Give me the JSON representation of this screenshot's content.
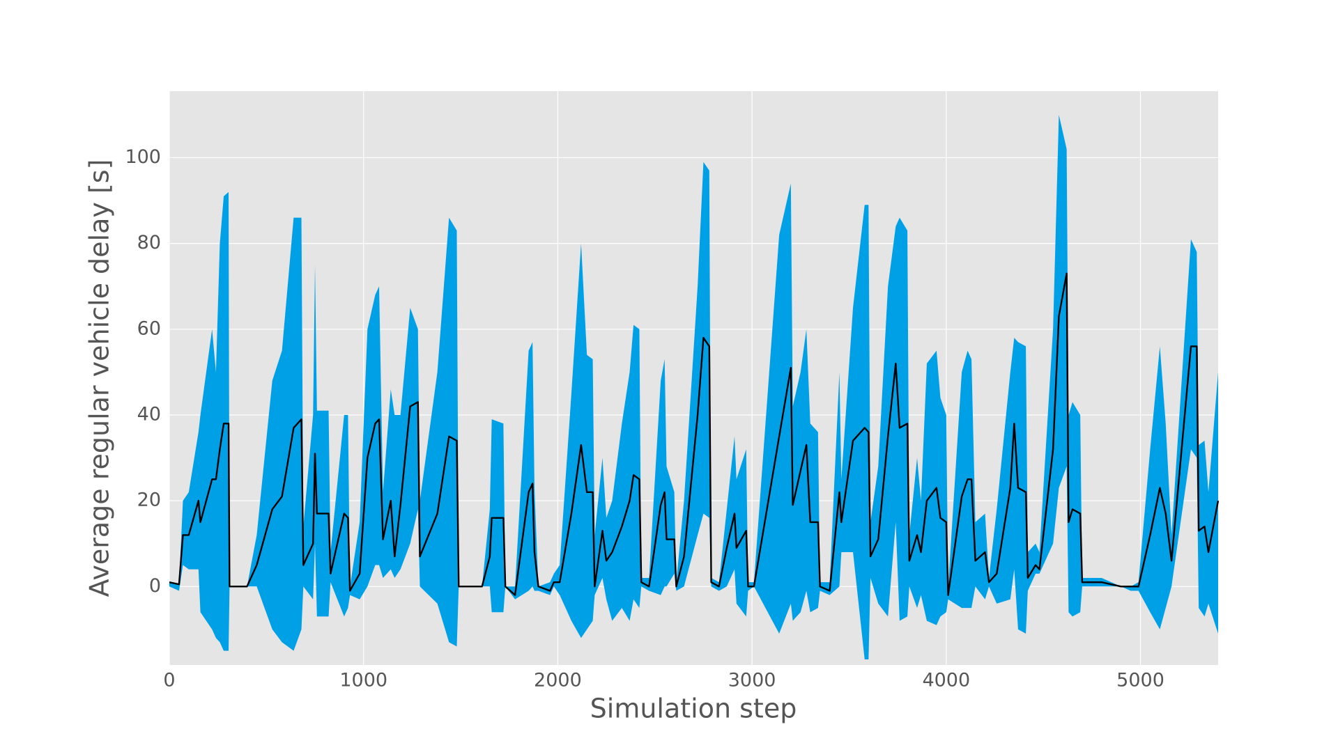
{
  "chart_data": {
    "type": "line",
    "xlabel": "Simulation step",
    "ylabel": "Average regular vehicle delay [s]",
    "x": [
      0,
      50,
      70,
      100,
      150,
      160,
      220,
      240,
      260,
      280,
      305,
      310,
      400,
      450,
      530,
      580,
      640,
      680,
      690,
      740,
      750,
      760,
      820,
      830,
      900,
      920,
      930,
      980,
      1020,
      1060,
      1080,
      1100,
      1140,
      1160,
      1190,
      1240,
      1280,
      1290,
      1380,
      1440,
      1480,
      1490,
      1610,
      1650,
      1660,
      1720,
      1730,
      1780,
      1850,
      1870,
      1880,
      1900,
      1960,
      1980,
      2010,
      2070,
      2120,
      2150,
      2180,
      2190,
      2230,
      2250,
      2280,
      2330,
      2370,
      2390,
      2420,
      2430,
      2470,
      2530,
      2550,
      2560,
      2600,
      2610,
      2650,
      2720,
      2750,
      2780,
      2790,
      2830,
      2870,
      2910,
      2920,
      2970,
      2980,
      3010,
      3140,
      3200,
      3210,
      3250,
      3280,
      3300,
      3340,
      3350,
      3400,
      3450,
      3460,
      3520,
      3580,
      3600,
      3610,
      3650,
      3700,
      3740,
      3760,
      3800,
      3810,
      3850,
      3870,
      3900,
      3950,
      3970,
      4000,
      4010,
      4080,
      4110,
      4130,
      4150,
      4200,
      4220,
      4260,
      4330,
      4350,
      4370,
      4410,
      4420,
      4460,
      4480,
      4550,
      4580,
      4620,
      4630,
      4650,
      4690,
      4700,
      4800,
      4900,
      4950,
      4990,
      5050,
      5100,
      5130,
      5160,
      5260,
      5290,
      5300,
      5330,
      5350,
      5400
    ],
    "series": [
      {
        "color": "#000000",
        "values": [
          1,
          0.5,
          12,
          12,
          20,
          15,
          25,
          25,
          32,
          38,
          38,
          0,
          0,
          5,
          18,
          21,
          37,
          39,
          5,
          10,
          31,
          17,
          17,
          3,
          17,
          16,
          -1,
          3,
          30,
          38,
          39,
          11,
          20,
          7,
          19,
          42,
          43,
          7,
          17,
          35,
          34,
          0,
          0,
          7,
          16,
          16,
          0,
          -2,
          22,
          24,
          8,
          0,
          -1,
          1,
          1,
          17,
          33,
          22,
          22,
          0,
          13,
          6,
          8,
          14,
          20,
          26,
          25,
          1,
          0,
          19,
          22,
          11,
          11,
          0,
          7,
          40,
          58,
          56,
          1,
          0,
          9,
          17,
          9,
          13,
          0,
          0,
          35,
          51,
          19,
          27,
          33,
          15,
          15,
          0,
          -1,
          22,
          15,
          34,
          37,
          36,
          7,
          11,
          35,
          52,
          37,
          38,
          6,
          12,
          8,
          20,
          23,
          16,
          15,
          -2,
          21,
          25,
          25,
          6,
          8,
          1,
          3,
          23,
          38,
          23,
          22,
          2,
          5,
          4,
          32,
          63,
          73,
          15,
          18,
          17,
          1,
          1,
          0,
          0,
          0,
          12,
          23,
          17,
          6,
          56,
          56,
          13,
          14,
          8,
          20
        ]
      }
    ],
    "band": {
      "color": "#00a0e6",
      "lower": [
        0,
        -1,
        5,
        4,
        4,
        -6,
        -10,
        -12,
        -13,
        -15,
        -15,
        0,
        0,
        0,
        -10,
        -13,
        -15,
        -10,
        0,
        -3,
        10,
        -7,
        -7,
        1,
        -7,
        -5,
        -2,
        -3,
        0,
        5,
        5,
        2,
        4,
        2,
        4,
        10,
        18,
        0,
        -4,
        -13,
        -14,
        0,
        0,
        0,
        -6,
        -6,
        0,
        -3,
        -1,
        0,
        -1,
        -1,
        -2,
        0,
        -2,
        -8,
        -12,
        -10,
        -8,
        -2,
        2,
        -3,
        -8,
        -5,
        -8,
        -3,
        -5,
        0,
        -1,
        -2,
        0,
        0,
        3,
        -1,
        0,
        12,
        17,
        16,
        0,
        -1,
        0,
        4,
        -4,
        -7,
        -1,
        0,
        -11,
        -4,
        -8,
        -6,
        -1,
        -6,
        -5,
        -1,
        -2,
        0,
        8,
        8,
        -17,
        -17,
        2,
        -4,
        -7,
        15,
        -8,
        -7,
        0,
        -5,
        -2,
        -8,
        -9,
        -7,
        -6,
        -3,
        -5,
        -5,
        -5,
        0,
        -3,
        0,
        -4,
        -3,
        4,
        -10,
        -11,
        -1,
        3,
        3,
        10,
        23,
        28,
        -6,
        -7,
        -6,
        0,
        0,
        0,
        -1,
        -1,
        -6,
        -10,
        -5,
        0,
        32,
        30,
        -5,
        -7,
        -4,
        -11
      ],
      "upper": [
        1,
        0.5,
        20,
        22,
        36,
        40,
        60,
        50,
        80,
        91,
        92,
        0,
        0,
        12,
        48,
        55,
        86,
        86,
        14,
        40,
        75,
        41,
        41,
        8,
        40,
        40,
        0,
        15,
        60,
        68,
        70,
        22,
        46,
        40,
        40,
        65,
        60,
        20,
        50,
        86,
        83,
        0,
        0,
        18,
        39,
        38,
        0,
        0,
        55,
        57,
        23,
        0,
        1,
        3,
        5,
        45,
        80,
        54,
        53,
        12,
        30,
        16,
        20,
        38,
        50,
        61,
        60,
        2,
        2,
        48,
        53,
        28,
        22,
        1,
        20,
        70,
        99,
        97,
        2,
        1,
        18,
        35,
        25,
        32,
        1,
        1,
        82,
        94,
        42,
        50,
        60,
        38,
        36,
        1,
        1,
        50,
        25,
        65,
        89,
        89,
        15,
        28,
        70,
        84,
        86,
        83,
        12,
        30,
        20,
        52,
        55,
        44,
        40,
        0,
        50,
        55,
        53,
        15,
        17,
        2,
        18,
        50,
        58,
        57,
        56,
        8,
        10,
        8,
        60,
        110,
        102,
        40,
        43,
        40,
        2,
        2,
        0,
        0,
        1,
        32,
        56,
        38,
        12,
        81,
        78,
        33,
        34,
        22,
        50
      ]
    },
    "xlim": [
      0,
      5400
    ],
    "ylim": [
      -18.3,
      115.5
    ],
    "xticks": [
      0,
      1000,
      2000,
      3000,
      4000,
      5000
    ],
    "yticks": [
      0,
      20,
      40,
      60,
      80,
      100
    ],
    "grid": true
  }
}
